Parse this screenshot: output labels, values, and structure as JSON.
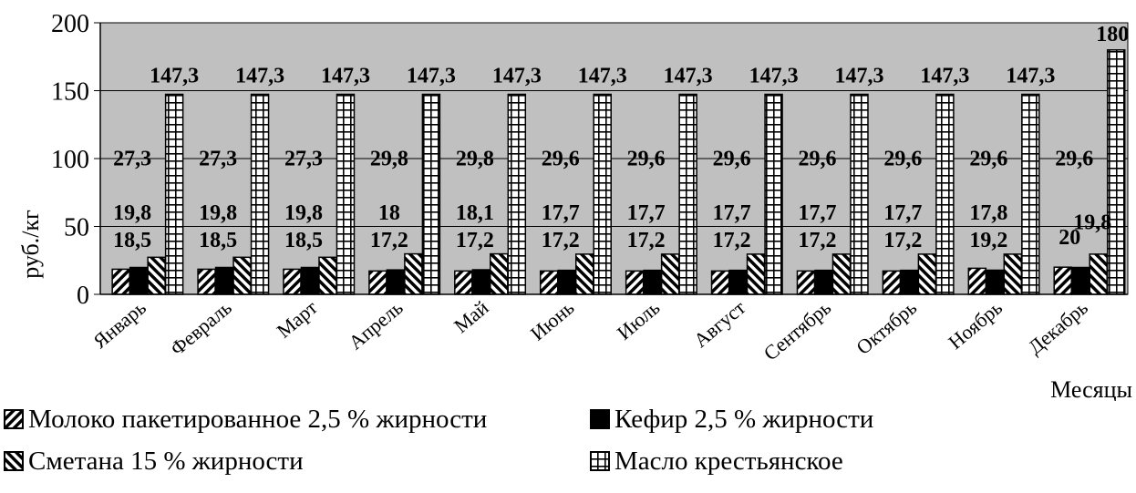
{
  "chart_data": {
    "type": "bar",
    "categories": [
      "Январь",
      "Февраль",
      "Март",
      "Апрель",
      "Май",
      "Июнь",
      "Июль",
      "Август",
      "Сентябрь",
      "Октябрь",
      "Ноябрь",
      "Декабрь"
    ],
    "series": [
      {
        "name": "Молоко пакетированное 2,5 % жирности",
        "pattern": "diag-left",
        "values": [
          18.5,
          18.5,
          18.5,
          17.2,
          17.2,
          17.2,
          17.2,
          17.2,
          17.2,
          17.2,
          19.2,
          20
        ],
        "labels": [
          "18,5",
          "18,5",
          "18,5",
          "17,2",
          "17,2",
          "17,2",
          "17,2",
          "17,2",
          "17,2",
          "17,2",
          "19,2",
          "20"
        ]
      },
      {
        "name": "Кефир 2,5 % жирности",
        "pattern": "solid-black",
        "values": [
          19.8,
          19.8,
          19.8,
          18,
          18.1,
          17.7,
          17.7,
          17.7,
          17.7,
          17.7,
          17.8,
          19.8
        ],
        "labels": [
          "19,8",
          "19,8",
          "19,8",
          "18",
          "18,1",
          "17,7",
          "17,7",
          "17,7",
          "17,7",
          "17,7",
          "17,8",
          "19,8"
        ]
      },
      {
        "name": "Сметана 15 % жирности",
        "pattern": "diag-right",
        "values": [
          27.3,
          27.3,
          27.3,
          29.8,
          29.8,
          29.6,
          29.6,
          29.6,
          29.6,
          29.6,
          29.6,
          29.6
        ],
        "labels": [
          "27,3",
          "27,3",
          "27,3",
          "29,8",
          "29,8",
          "29,6",
          "29,6",
          "29,6",
          "29,6",
          "29,6",
          "29,6",
          "29,6"
        ]
      },
      {
        "name": "Масло крестьянское",
        "pattern": "grid",
        "values": [
          147.3,
          147.3,
          147.3,
          147.3,
          147.3,
          147.3,
          147.3,
          147.3,
          147.3,
          147.3,
          147.3,
          180
        ],
        "labels": [
          "147,3",
          "147,3",
          "147,3",
          "147,3",
          "147,3",
          "147,3",
          "147,3",
          "147,3",
          "147,3",
          "147,3",
          "147,3",
          "180"
        ]
      }
    ],
    "title": "",
    "xlabel": "Месяцы",
    "ylabel": "руб./кг",
    "ylim": [
      0,
      200
    ],
    "yticks": [
      "0",
      "50",
      "100",
      "150",
      "200"
    ],
    "grid": true,
    "plot_background": "#c0c0c0",
    "legend_position": "bottom"
  }
}
